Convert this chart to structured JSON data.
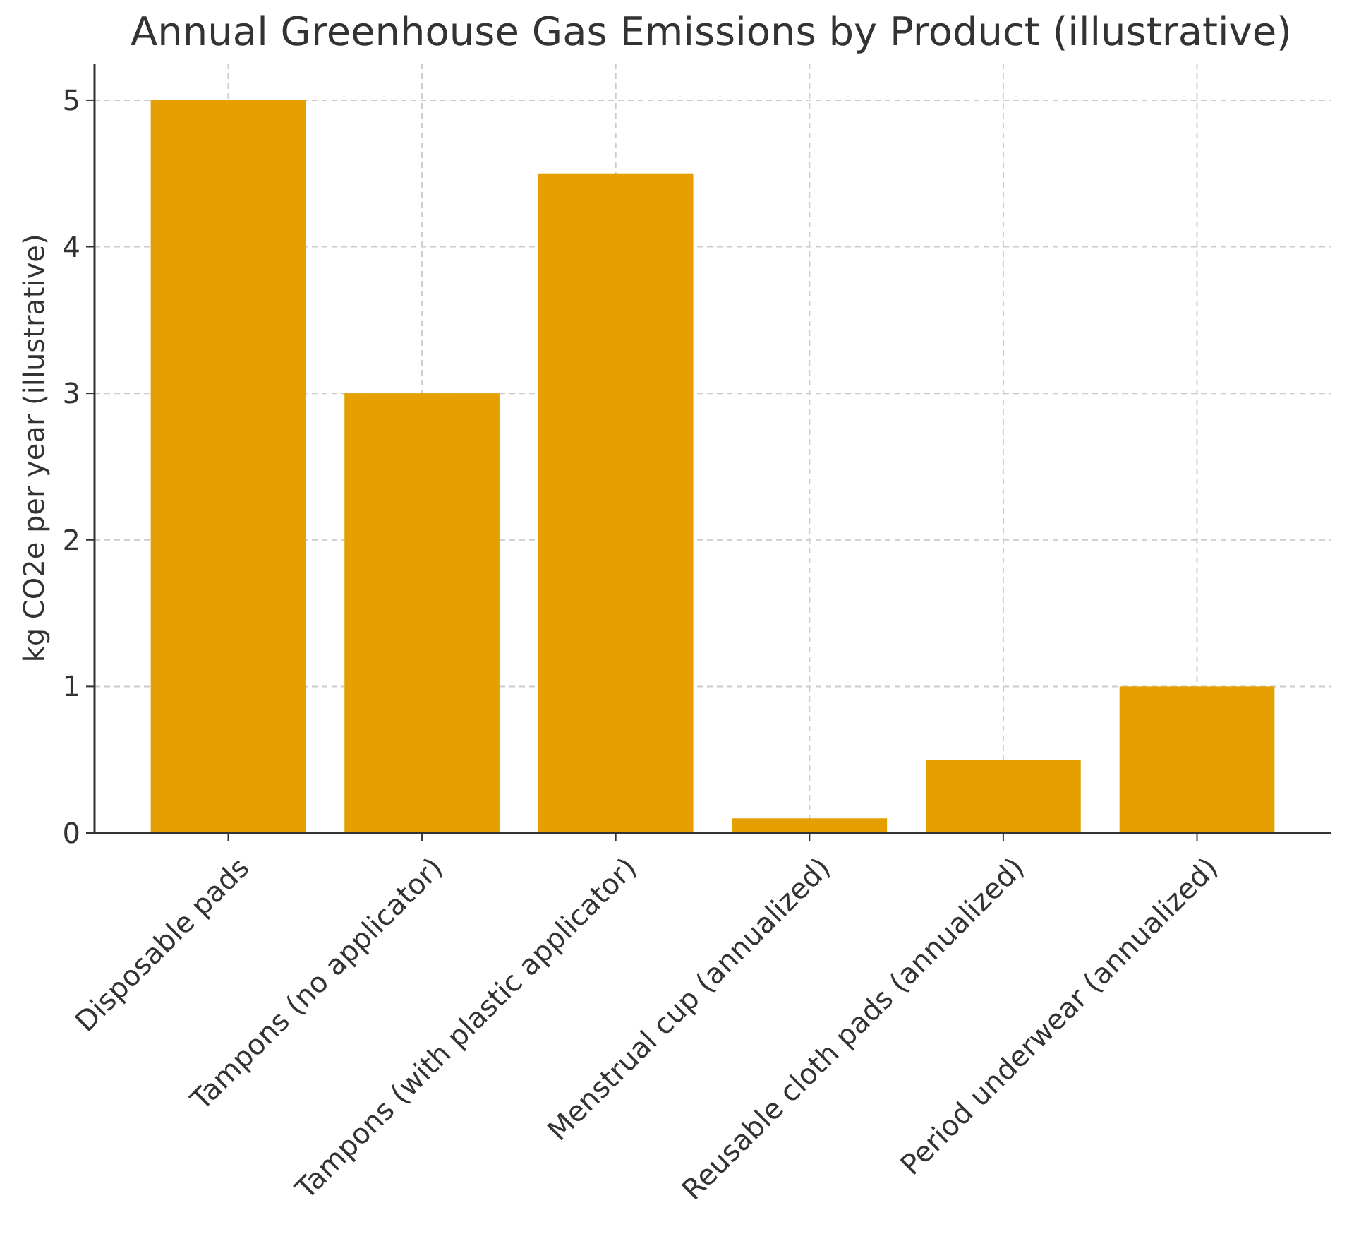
{
  "chart_data": {
    "type": "bar",
    "title": "Annual Greenhouse Gas Emissions by Product (illustrative)",
    "ylabel": "kg CO2e per year (illustrative)",
    "categories": [
      "Disposable pads",
      "Tampons (no applicator)",
      "Tampons (with plastic applicator)",
      "Menstrual cup (annualized)",
      "Reusable cloth pads (annualized)",
      "Period underwear (annualized)"
    ],
    "values": [
      5,
      3,
      4.5,
      0.1,
      0.5,
      1
    ],
    "color": "#e69f00",
    "ylim": [
      0,
      5.25
    ],
    "yticks": [
      0,
      1,
      2,
      3,
      4,
      5
    ],
    "grid": true
  }
}
